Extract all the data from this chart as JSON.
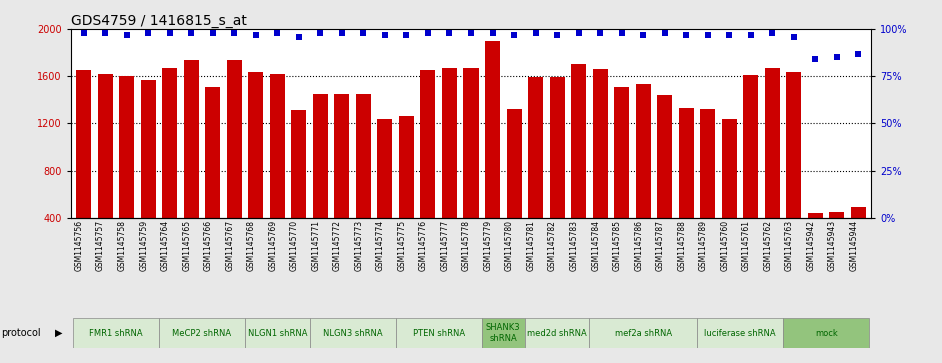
{
  "title": "GDS4759 / 1416815_s_at",
  "samples": [
    "GSM1145756",
    "GSM1145757",
    "GSM1145758",
    "GSM1145759",
    "GSM1145764",
    "GSM1145765",
    "GSM1145766",
    "GSM1145767",
    "GSM1145768",
    "GSM1145769",
    "GSM1145770",
    "GSM1145771",
    "GSM1145772",
    "GSM1145773",
    "GSM1145774",
    "GSM1145775",
    "GSM1145776",
    "GSM1145777",
    "GSM1145778",
    "GSM1145779",
    "GSM1145780",
    "GSM1145781",
    "GSM1145782",
    "GSM1145783",
    "GSM1145784",
    "GSM1145785",
    "GSM1145786",
    "GSM1145787",
    "GSM1145788",
    "GSM1145789",
    "GSM1145760",
    "GSM1145761",
    "GSM1145762",
    "GSM1145763",
    "GSM1145942",
    "GSM1145943",
    "GSM1145944"
  ],
  "bar_heights": [
    1650,
    1615,
    1600,
    1565,
    1670,
    1740,
    1510,
    1740,
    1640,
    1615,
    1310,
    1450,
    1450,
    1450,
    1240,
    1265,
    1650,
    1670,
    1670,
    1900,
    1320,
    1590,
    1590,
    1700,
    1660,
    1510,
    1530,
    1440,
    1330,
    1320,
    1240,
    1610,
    1670,
    1640,
    440,
    450,
    490
  ],
  "percentiles": [
    98,
    98,
    97,
    98,
    98,
    98,
    98,
    98,
    97,
    98,
    96,
    98,
    98,
    98,
    97,
    97,
    98,
    98,
    98,
    98,
    97,
    98,
    97,
    98,
    98,
    98,
    97,
    98,
    97,
    97,
    97,
    97,
    98,
    96,
    84,
    85,
    87
  ],
  "protocols": [
    {
      "label": "FMR1 shRNA",
      "start": 0,
      "end": 3,
      "color": "#d9ead3"
    },
    {
      "label": "MeCP2 shRNA",
      "start": 4,
      "end": 7,
      "color": "#d9ead3"
    },
    {
      "label": "NLGN1 shRNA",
      "start": 8,
      "end": 10,
      "color": "#d9ead3"
    },
    {
      "label": "NLGN3 shRNA",
      "start": 11,
      "end": 14,
      "color": "#d9ead3"
    },
    {
      "label": "PTEN shRNA",
      "start": 15,
      "end": 18,
      "color": "#d9ead3"
    },
    {
      "label": "SHANK3\nshRNA",
      "start": 19,
      "end": 20,
      "color": "#93c47d"
    },
    {
      "label": "med2d shRNA",
      "start": 21,
      "end": 23,
      "color": "#d9ead3"
    },
    {
      "label": "mef2a shRNA",
      "start": 24,
      "end": 28,
      "color": "#d9ead3"
    },
    {
      "label": "luciferase shRNA",
      "start": 29,
      "end": 32,
      "color": "#d9ead3"
    },
    {
      "label": "mock",
      "start": 33,
      "end": 36,
      "color": "#93c47d"
    }
  ],
  "ylim_left": [
    400,
    2000
  ],
  "ylim_right": [
    0,
    100
  ],
  "yticks_left": [
    400,
    800,
    1200,
    1600,
    2000
  ],
  "yticks_right": [
    0,
    25,
    50,
    75,
    100
  ],
  "bar_color": "#cc0000",
  "dot_color": "#0000cc",
  "bg_color": "#e8e8e8",
  "plot_bg": "#ffffff",
  "grid_color": "#000000",
  "title_fontsize": 10,
  "tick_fontsize": 7,
  "label_fontsize": 7
}
